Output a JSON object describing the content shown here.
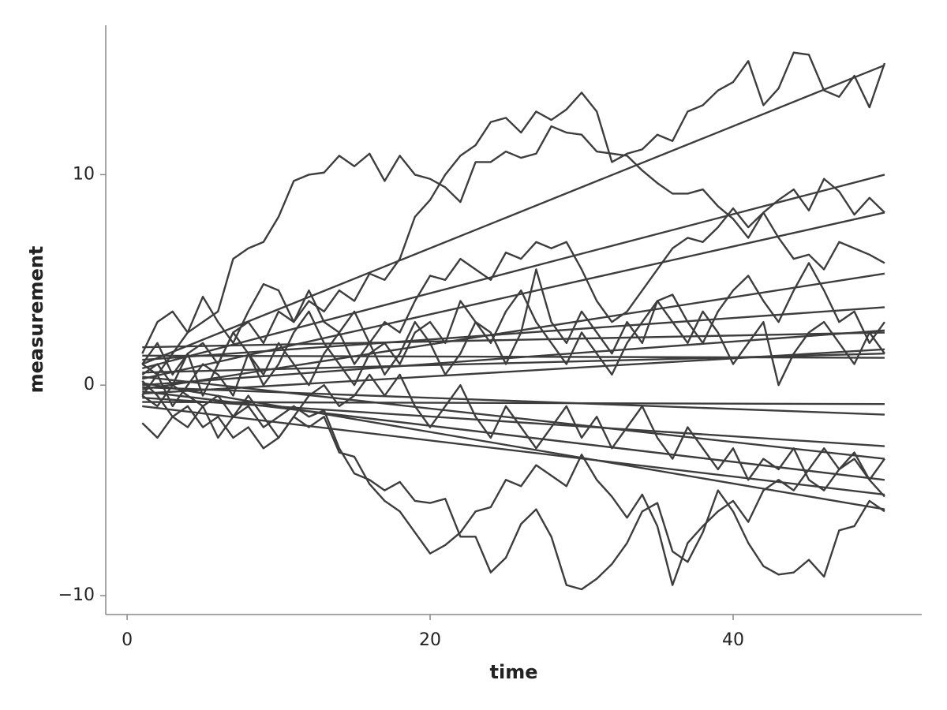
{
  "chart_data": {
    "type": "line",
    "x_label": "time",
    "y_label": "measurement",
    "x": [
      1,
      2,
      3,
      4,
      5,
      6,
      7,
      8,
      9,
      10,
      11,
      12,
      13,
      14,
      15,
      16,
      17,
      18,
      19,
      20,
      21,
      22,
      23,
      24,
      25,
      26,
      27,
      28,
      29,
      30,
      31,
      32,
      33,
      34,
      35,
      36,
      37,
      38,
      39,
      40,
      41,
      42,
      43,
      44,
      45,
      46,
      47,
      48,
      49,
      50
    ],
    "xlim": [
      -1.41,
      52.45
    ],
    "xticks": [
      0,
      20,
      40
    ],
    "ylim": [
      -10.9,
      17.1
    ],
    "yticks": [
      {
        "value": -10,
        "label": "−10"
      },
      0,
      10
    ],
    "grid": false,
    "series": [
      {
        "color": "#3d3d3d",
        "values": [
          1.0,
          0.5,
          1.5,
          2.5,
          3.0,
          3.5,
          6.0,
          6.5,
          6.8,
          8.0,
          9.7,
          10.0,
          10.1,
          10.9,
          10.4,
          11.0,
          9.7,
          10.9,
          10.0,
          9.8,
          9.4,
          8.7,
          10.6,
          10.6,
          11.1,
          10.8,
          11.0,
          12.3,
          12.0,
          11.9,
          11.1,
          11.0,
          10.9,
          10.2,
          9.6,
          9.1,
          9.1,
          9.3,
          8.5,
          7.9,
          7.0,
          8.2,
          8.8,
          9.3,
          8.3,
          9.8,
          9.2,
          8.1,
          8.9,
          8.2
        ]
      },
      {
        "color": "#3d3d3d",
        "values": [
          0.5,
          1.0,
          0.0,
          1.5,
          2.0,
          1.0,
          2.5,
          3.0,
          2.0,
          3.5,
          3.0,
          4.0,
          3.5,
          4.5,
          4.0,
          5.3,
          5.0,
          6.0,
          8.0,
          8.8,
          10.0,
          10.9,
          11.4,
          12.5,
          12.7,
          12.0,
          13.0,
          12.6,
          13.1,
          13.9,
          13.0,
          10.6,
          11.0,
          11.2,
          11.9,
          11.6,
          13.0,
          13.3,
          14.0,
          14.4,
          15.4,
          13.3,
          14.1,
          15.8,
          15.7,
          14.0,
          13.7,
          14.7,
          13.2,
          15.3
        ]
      },
      {
        "color": "#3d3d3d",
        "values": [
          -0.5,
          -1.0,
          0.0,
          -0.5,
          -1.0,
          -0.5,
          -1.5,
          -1.0,
          -2.0,
          -1.5,
          -1.0,
          -1.5,
          -1.2,
          -3.0,
          -4.2,
          -4.5,
          -5.0,
          -4.6,
          -5.5,
          -5.6,
          -5.4,
          -7.2,
          -7.2,
          -8.9,
          -8.2,
          -6.6,
          -5.9,
          -7.2,
          -9.5,
          -9.7,
          -9.2,
          -8.5,
          -7.5,
          -6.0,
          -5.6,
          -7.9,
          -8.4,
          -7.0,
          -5.0,
          -6.0,
          -7.5,
          -8.6,
          -9.0,
          -8.9,
          -8.3,
          -9.1,
          -6.9,
          -6.7,
          -5.5,
          -6.0
        ]
      },
      {
        "color": "#3d3d3d",
        "values": [
          0.2,
          -0.5,
          -1.5,
          -1.0,
          -2.0,
          -1.5,
          -2.5,
          -2.0,
          -3.0,
          -2.5,
          -1.5,
          -2.0,
          -1.5,
          -3.2,
          -3.4,
          -4.7,
          -5.5,
          -6.0,
          -7.0,
          -8.0,
          -7.6,
          -7.0,
          -6.0,
          -5.8,
          -4.5,
          -4.8,
          -3.8,
          -4.3,
          -4.8,
          -3.3,
          -4.5,
          -5.3,
          -6.3,
          -5.2,
          -6.7,
          -9.5,
          -7.5,
          -6.7,
          -6.0,
          -5.5,
          -6.5,
          -5.0,
          -4.5,
          -5.0,
          -4.0,
          -3.0,
          -4.0,
          -3.2,
          -4.5,
          -5.3
        ]
      },
      {
        "color": "#3d3d3d",
        "values": [
          1.5,
          3.0,
          3.5,
          2.5,
          4.2,
          3.0,
          2.0,
          3.5,
          4.8,
          4.5,
          3.0,
          4.5,
          3.0,
          2.5,
          3.5,
          2.0,
          3.0,
          2.5,
          4.0,
          5.2,
          5.0,
          6.0,
          5.5,
          5.0,
          6.3,
          6.0,
          6.8,
          6.5,
          6.8,
          5.5,
          4.0,
          3.0,
          3.5,
          4.5,
          5.5,
          6.5,
          7.0,
          6.8,
          7.5,
          8.4,
          7.5,
          8.2,
          7.0,
          6.0,
          6.2,
          5.5,
          6.8,
          6.5,
          6.2,
          5.8
        ]
      },
      {
        "color": "#3d3d3d",
        "values": [
          -0.5,
          0.5,
          -1.0,
          0.0,
          1.0,
          0.5,
          -0.5,
          1.5,
          0.5,
          2.0,
          1.0,
          0.0,
          1.5,
          2.5,
          1.0,
          2.0,
          0.5,
          1.5,
          3.0,
          2.0,
          0.5,
          1.5,
          3.0,
          2.5,
          1.0,
          2.5,
          5.5,
          3.0,
          2.0,
          3.5,
          2.5,
          1.5,
          3.0,
          2.0,
          4.0,
          3.0,
          2.0,
          3.5,
          2.5,
          1.0,
          2.0,
          3.0,
          0.0,
          1.5,
          2.5,
          3.0,
          2.0,
          1.0,
          2.5,
          1.5
        ]
      },
      {
        "color": "#3d3d3d",
        "values": [
          -1.8,
          -2.5,
          -1.5,
          -2.0,
          -1.0,
          -2.5,
          -1.5,
          -0.5,
          -1.5,
          -2.5,
          -1.5,
          -0.5,
          0.0,
          -1.0,
          -0.5,
          0.5,
          -0.5,
          0.5,
          -1.0,
          -2.0,
          -1.0,
          0.0,
          -1.5,
          -2.5,
          -1.0,
          -2.0,
          -3.0,
          -2.0,
          -1.0,
          -2.5,
          -1.5,
          -3.0,
          -2.0,
          -1.0,
          -2.5,
          -3.5,
          -2.0,
          -3.0,
          -4.0,
          -3.0,
          -4.5,
          -3.5,
          -4.0,
          -3.0,
          -4.5,
          -5.0,
          -4.0,
          -3.5,
          -4.5,
          -3.5
        ]
      },
      {
        "color": "#3d3d3d",
        "values": [
          1.0,
          2.0,
          0.5,
          1.5,
          -0.5,
          1.0,
          2.5,
          1.5,
          0.0,
          1.0,
          2.5,
          3.5,
          2.0,
          1.0,
          0.0,
          1.5,
          2.0,
          1.0,
          2.5,
          3.0,
          2.0,
          4.0,
          3.0,
          2.0,
          3.5,
          4.5,
          3.0,
          2.0,
          1.0,
          2.5,
          1.5,
          0.5,
          2.0,
          3.0,
          4.0,
          4.3,
          3.0,
          2.0,
          3.5,
          4.5,
          5.2,
          4.0,
          3.0,
          4.5,
          5.8,
          4.5,
          3.0,
          3.5,
          2.0,
          3.0
        ]
      },
      {
        "color": "#3d3d3d",
        "x": [
          1,
          50
        ],
        "values": [
          1.0,
          15.2
        ]
      },
      {
        "color": "#3d3d3d",
        "x": [
          1,
          50
        ],
        "values": [
          0.8,
          10.0
        ]
      },
      {
        "color": "#3d3d3d",
        "x": [
          1,
          50
        ],
        "values": [
          0.3,
          8.2
        ]
      },
      {
        "color": "#3d3d3d",
        "x": [
          1,
          50
        ],
        "values": [
          -0.2,
          5.3
        ]
      },
      {
        "color": "#3d3d3d",
        "x": [
          1,
          50
        ],
        "values": [
          1.2,
          3.7
        ]
      },
      {
        "color": "#3d3d3d",
        "x": [
          1,
          50
        ],
        "values": [
          0.0,
          2.6
        ]
      },
      {
        "color": "#3d3d3d",
        "x": [
          1,
          50
        ],
        "values": [
          1.8,
          2.5
        ]
      },
      {
        "color": "#3d3d3d",
        "x": [
          1,
          50
        ],
        "values": [
          -0.4,
          1.7
        ]
      },
      {
        "color": "#3d3d3d",
        "x": [
          1,
          50
        ],
        "values": [
          0.6,
          1.5
        ]
      },
      {
        "color": "#3d3d3d",
        "x": [
          1,
          50
        ],
        "values": [
          1.4,
          1.3
        ]
      },
      {
        "color": "#3d3d3d",
        "x": [
          1,
          50
        ],
        "values": [
          -0.8,
          -0.9
        ]
      },
      {
        "color": "#3d3d3d",
        "x": [
          1,
          50
        ],
        "values": [
          -0.1,
          -1.4
        ]
      },
      {
        "color": "#3d3d3d",
        "x": [
          1,
          50
        ],
        "values": [
          -0.6,
          -2.9
        ]
      },
      {
        "color": "#3d3d3d",
        "x": [
          1,
          50
        ],
        "values": [
          0.4,
          -3.5
        ]
      },
      {
        "color": "#3d3d3d",
        "x": [
          1,
          50
        ],
        "values": [
          -0.3,
          -4.5
        ]
      },
      {
        "color": "#3d3d3d",
        "x": [
          1,
          50
        ],
        "values": [
          -1.0,
          -5.2
        ]
      },
      {
        "color": "#3d3d3d",
        "x": [
          1,
          50
        ],
        "values": [
          0.1,
          -5.9
        ]
      }
    ]
  }
}
